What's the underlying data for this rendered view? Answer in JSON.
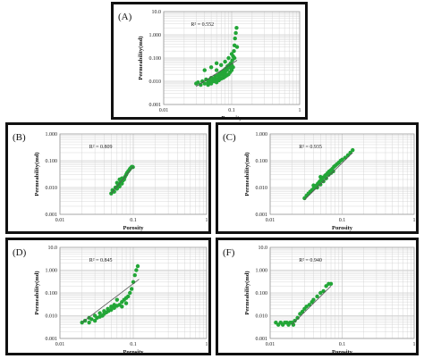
{
  "colors": {
    "point": "#22a637",
    "trend": "#555555",
    "grid": "#cfcfcf",
    "frame": "#111111"
  },
  "chart_data": [
    {
      "type": "scatter",
      "id": "A",
      "panel_label": "(A)",
      "xlabel": "Porosity",
      "ylabel": "Permeability(md)",
      "x_scale": "log",
      "y_scale": "log",
      "xlim": [
        0.01,
        1
      ],
      "ylim": [
        0.001,
        10
      ],
      "x_ticks": [
        "0.01",
        "0.1",
        "1"
      ],
      "y_ticks": [
        "0.001",
        "0.010",
        "0.100",
        "1.000",
        "10.0"
      ],
      "annotation": "R² = 0.552",
      "grid": true,
      "trendline": {
        "x": [
          0.03,
          0.12
        ],
        "y": [
          0.006,
          0.08
        ]
      },
      "points": [
        [
          0.03,
          0.008
        ],
        [
          0.032,
          0.009
        ],
        [
          0.035,
          0.007
        ],
        [
          0.037,
          0.01
        ],
        [
          0.04,
          0.008
        ],
        [
          0.042,
          0.012
        ],
        [
          0.045,
          0.009
        ],
        [
          0.047,
          0.011
        ],
        [
          0.05,
          0.014
        ],
        [
          0.052,
          0.01
        ],
        [
          0.055,
          0.013
        ],
        [
          0.057,
          0.016
        ],
        [
          0.06,
          0.012
        ],
        [
          0.062,
          0.018
        ],
        [
          0.065,
          0.015
        ],
        [
          0.067,
          0.022
        ],
        [
          0.07,
          0.019
        ],
        [
          0.072,
          0.025
        ],
        [
          0.075,
          0.02
        ],
        [
          0.077,
          0.03
        ],
        [
          0.08,
          0.024
        ],
        [
          0.082,
          0.035
        ],
        [
          0.085,
          0.03
        ],
        [
          0.087,
          0.045
        ],
        [
          0.09,
          0.038
        ],
        [
          0.092,
          0.05
        ],
        [
          0.095,
          0.04
        ],
        [
          0.097,
          0.06
        ],
        [
          0.1,
          0.05
        ],
        [
          0.102,
          0.08
        ],
        [
          0.105,
          0.12
        ],
        [
          0.108,
          0.2
        ],
        [
          0.11,
          0.35
        ],
        [
          0.112,
          0.7
        ],
        [
          0.115,
          1.2
        ],
        [
          0.118,
          2.0
        ],
        [
          0.06,
          0.009
        ],
        [
          0.065,
          0.011
        ],
        [
          0.07,
          0.013
        ],
        [
          0.075,
          0.014
        ],
        [
          0.08,
          0.016
        ],
        [
          0.085,
          0.018
        ],
        [
          0.09,
          0.02
        ],
        [
          0.095,
          0.025
        ],
        [
          0.1,
          0.03
        ],
        [
          0.105,
          0.04
        ],
        [
          0.05,
          0.008
        ],
        [
          0.045,
          0.007
        ],
        [
          0.055,
          0.01
        ],
        [
          0.06,
          0.03
        ],
        [
          0.07,
          0.05
        ],
        [
          0.08,
          0.07
        ],
        [
          0.09,
          0.1
        ],
        [
          0.1,
          0.15
        ],
        [
          0.11,
          0.1
        ],
        [
          0.04,
          0.03
        ],
        [
          0.05,
          0.04
        ],
        [
          0.06,
          0.06
        ],
        [
          0.12,
          0.3
        ]
      ]
    },
    {
      "type": "scatter",
      "id": "B",
      "panel_label": "(B)",
      "xlabel": "Porosity",
      "ylabel": "Permeability(md)",
      "x_scale": "log",
      "y_scale": "log",
      "xlim": [
        0.01,
        1
      ],
      "ylim": [
        0.001,
        1
      ],
      "x_ticks": [
        "0.01",
        "0.1",
        "1"
      ],
      "y_ticks": [
        "0.001",
        "0.010",
        "0.100",
        "1.000"
      ],
      "annotation": "R² = 0.809",
      "grid": true,
      "trendline": {
        "x": [
          0.05,
          0.1
        ],
        "y": [
          0.006,
          0.06
        ]
      },
      "points": [
        [
          0.05,
          0.006
        ],
        [
          0.052,
          0.008
        ],
        [
          0.055,
          0.007
        ],
        [
          0.057,
          0.01
        ],
        [
          0.06,
          0.009
        ],
        [
          0.062,
          0.012
        ],
        [
          0.065,
          0.011
        ],
        [
          0.067,
          0.015
        ],
        [
          0.07,
          0.014
        ],
        [
          0.072,
          0.018
        ],
        [
          0.075,
          0.02
        ],
        [
          0.077,
          0.025
        ],
        [
          0.08,
          0.03
        ],
        [
          0.082,
          0.035
        ],
        [
          0.085,
          0.04
        ],
        [
          0.088,
          0.045
        ],
        [
          0.09,
          0.05
        ],
        [
          0.093,
          0.055
        ],
        [
          0.096,
          0.06
        ],
        [
          0.099,
          0.058
        ],
        [
          0.06,
          0.015
        ],
        [
          0.065,
          0.02
        ],
        [
          0.07,
          0.022
        ]
      ]
    },
    {
      "type": "scatter",
      "id": "C",
      "panel_label": "(C)",
      "xlabel": "Porosity",
      "ylabel": "Permeability(md)",
      "x_scale": "log",
      "y_scale": "log",
      "xlim": [
        0.01,
        1
      ],
      "ylim": [
        0.001,
        1
      ],
      "x_ticks": [
        "0.01",
        "0.1",
        "1"
      ],
      "y_ticks": [
        "0.001",
        "0.010",
        "0.100",
        "1.000"
      ],
      "annotation": "R² = 0.935",
      "grid": true,
      "trendline": {
        "x": [
          0.03,
          0.14
        ],
        "y": [
          0.0035,
          0.2
        ]
      },
      "points": [
        [
          0.03,
          0.004
        ],
        [
          0.032,
          0.005
        ],
        [
          0.034,
          0.006
        ],
        [
          0.036,
          0.007
        ],
        [
          0.038,
          0.008
        ],
        [
          0.04,
          0.009
        ],
        [
          0.042,
          0.011
        ],
        [
          0.044,
          0.012
        ],
        [
          0.046,
          0.014
        ],
        [
          0.048,
          0.016
        ],
        [
          0.05,
          0.018
        ],
        [
          0.052,
          0.02
        ],
        [
          0.055,
          0.024
        ],
        [
          0.058,
          0.028
        ],
        [
          0.06,
          0.03
        ],
        [
          0.063,
          0.035
        ],
        [
          0.066,
          0.04
        ],
        [
          0.07,
          0.045
        ],
        [
          0.073,
          0.05
        ],
        [
          0.077,
          0.06
        ],
        [
          0.08,
          0.065
        ],
        [
          0.085,
          0.075
        ],
        [
          0.09,
          0.085
        ],
        [
          0.095,
          0.1
        ],
        [
          0.1,
          0.11
        ],
        [
          0.11,
          0.13
        ],
        [
          0.12,
          0.16
        ],
        [
          0.13,
          0.2
        ],
        [
          0.14,
          0.25
        ],
        [
          0.045,
          0.01
        ],
        [
          0.05,
          0.013
        ],
        [
          0.055,
          0.017
        ],
        [
          0.06,
          0.022
        ],
        [
          0.065,
          0.03
        ],
        [
          0.07,
          0.035
        ],
        [
          0.075,
          0.04
        ],
        [
          0.04,
          0.012
        ],
        [
          0.05,
          0.025
        ]
      ]
    },
    {
      "type": "scatter",
      "id": "D",
      "panel_label": "(D)",
      "xlabel": "Porosity",
      "ylabel": "Permeability(md)",
      "x_scale": "log",
      "y_scale": "log",
      "xlim": [
        0.01,
        1
      ],
      "ylim": [
        0.001,
        10
      ],
      "x_ticks": [
        "0.01",
        "0.1",
        "1"
      ],
      "y_ticks": [
        "0.001",
        "0.010",
        "0.100",
        "1.000",
        "10.0"
      ],
      "annotation": "R² = 0.845",
      "grid": true,
      "trendline": {
        "x": [
          0.02,
          0.12
        ],
        "y": [
          0.005,
          0.4
        ]
      },
      "points": [
        [
          0.02,
          0.005
        ],
        [
          0.022,
          0.006
        ],
        [
          0.025,
          0.005
        ],
        [
          0.027,
          0.007
        ],
        [
          0.03,
          0.006
        ],
        [
          0.032,
          0.008
        ],
        [
          0.035,
          0.009
        ],
        [
          0.038,
          0.01
        ],
        [
          0.04,
          0.012
        ],
        [
          0.043,
          0.014
        ],
        [
          0.046,
          0.016
        ],
        [
          0.05,
          0.018
        ],
        [
          0.055,
          0.022
        ],
        [
          0.06,
          0.027
        ],
        [
          0.065,
          0.03
        ],
        [
          0.07,
          0.04
        ],
        [
          0.075,
          0.05
        ],
        [
          0.08,
          0.06
        ],
        [
          0.085,
          0.07
        ],
        [
          0.09,
          0.1
        ],
        [
          0.095,
          0.15
        ],
        [
          0.1,
          0.3
        ],
        [
          0.105,
          0.6
        ],
        [
          0.11,
          1.0
        ],
        [
          0.115,
          1.5
        ],
        [
          0.03,
          0.01
        ],
        [
          0.035,
          0.013
        ],
        [
          0.04,
          0.016
        ],
        [
          0.045,
          0.02
        ],
        [
          0.05,
          0.025
        ],
        [
          0.055,
          0.03
        ],
        [
          0.06,
          0.05
        ],
        [
          0.025,
          0.008
        ],
        [
          0.07,
          0.025
        ],
        [
          0.08,
          0.035
        ]
      ]
    },
    {
      "type": "scatter",
      "id": "F",
      "panel_label": "(F)",
      "xlabel": "Porosity",
      "ylabel": "Permeability(md)",
      "x_scale": "log",
      "y_scale": "log",
      "xlim": [
        0.01,
        1
      ],
      "ylim": [
        0.001,
        10
      ],
      "x_ticks": [
        "0.01",
        "0.1",
        "1"
      ],
      "y_ticks": [
        "0.001",
        "0.010",
        "0.100",
        "1.000",
        "10.0"
      ],
      "annotation": "R² = 0.940",
      "grid": true,
      "trendline": {
        "x": [
          0.02,
          0.07
        ],
        "y": [
          0.004,
          0.2
        ]
      },
      "points": [
        [
          0.012,
          0.005
        ],
        [
          0.013,
          0.004
        ],
        [
          0.014,
          0.005
        ],
        [
          0.015,
          0.004
        ],
        [
          0.016,
          0.005
        ],
        [
          0.017,
          0.005
        ],
        [
          0.018,
          0.004
        ],
        [
          0.019,
          0.005
        ],
        [
          0.02,
          0.005
        ],
        [
          0.021,
          0.004
        ],
        [
          0.022,
          0.006
        ],
        [
          0.024,
          0.008
        ],
        [
          0.026,
          0.012
        ],
        [
          0.028,
          0.015
        ],
        [
          0.03,
          0.02
        ],
        [
          0.032,
          0.025
        ],
        [
          0.035,
          0.03
        ],
        [
          0.038,
          0.04
        ],
        [
          0.04,
          0.05
        ],
        [
          0.045,
          0.07
        ],
        [
          0.05,
          0.1
        ],
        [
          0.055,
          0.12
        ],
        [
          0.06,
          0.2
        ],
        [
          0.065,
          0.25
        ],
        [
          0.07,
          0.25
        ]
      ]
    }
  ]
}
